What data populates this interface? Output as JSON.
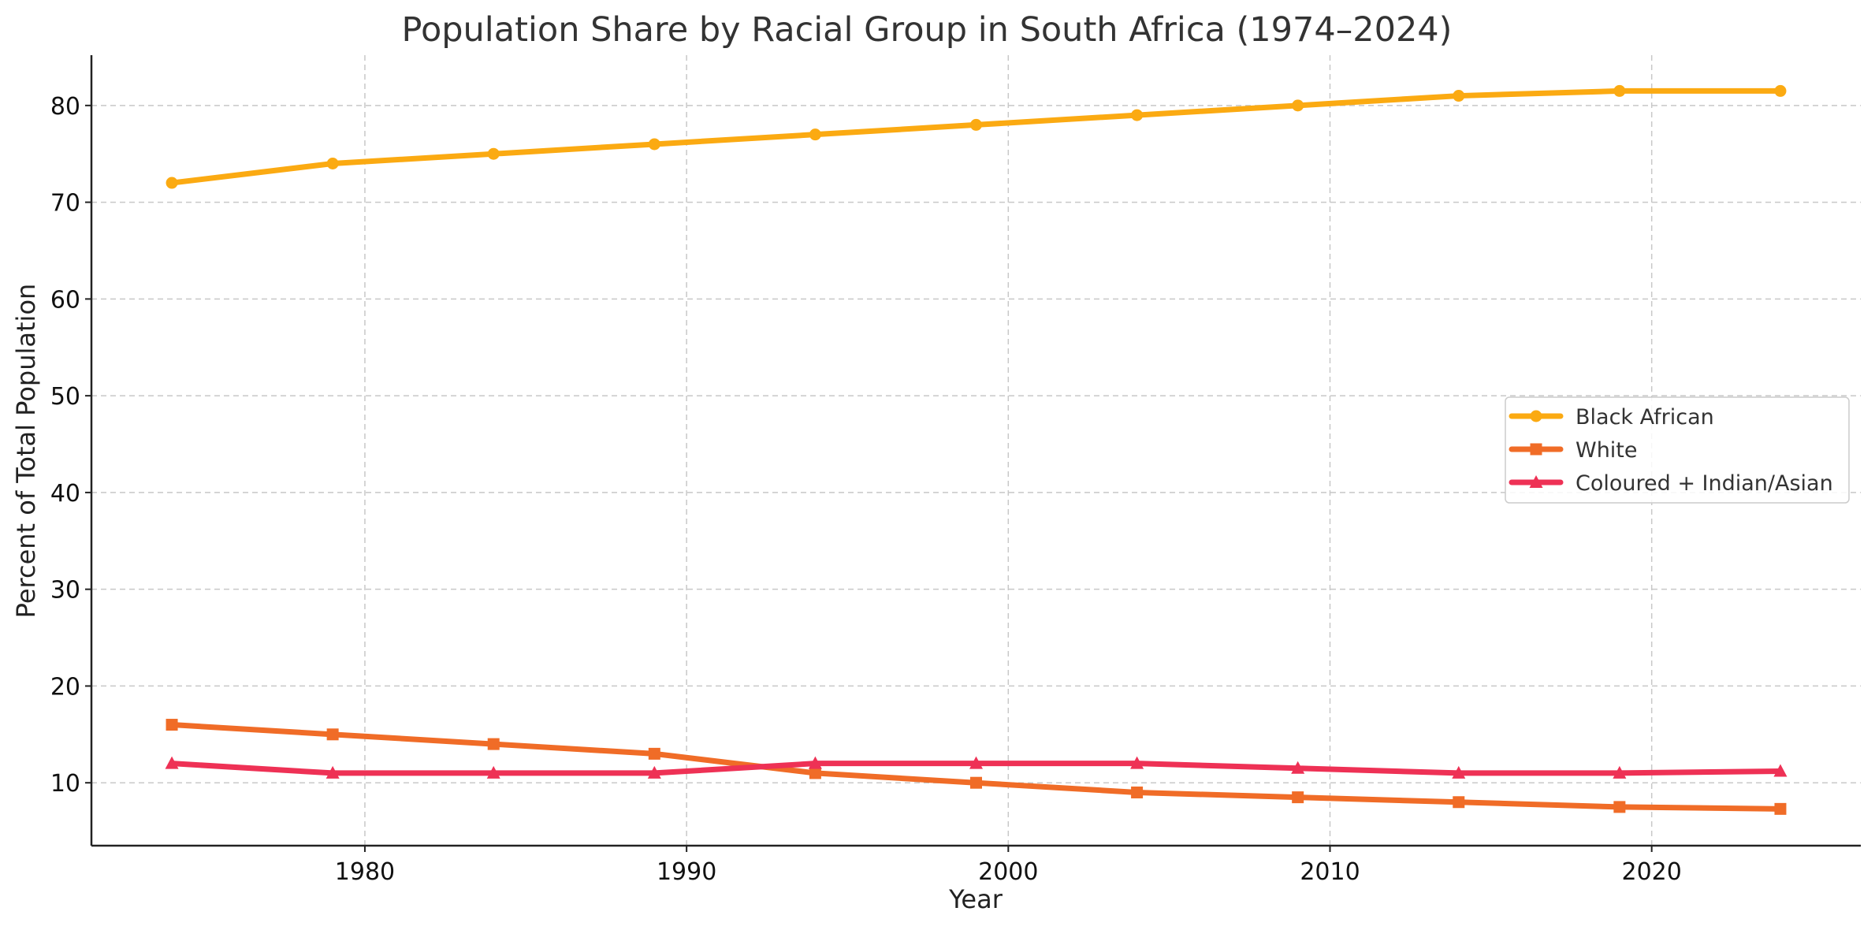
{
  "chart_data": {
    "type": "line",
    "title": "Population Share by Racial Group in South Africa (1974–2024)",
    "xlabel": "Year",
    "ylabel": "Percent of Total Population",
    "xlim": [
      1971.5,
      2026.5
    ],
    "ylim": [
      3.5,
      85.2
    ],
    "x_ticks": [
      1980,
      1990,
      2000,
      2010,
      2020
    ],
    "y_ticks": [
      10,
      20,
      30,
      40,
      50,
      60,
      70,
      80
    ],
    "grid": true,
    "legend_position": "center-right",
    "x": [
      1974,
      1979,
      1984,
      1989,
      1994,
      1999,
      2004,
      2009,
      2014,
      2019,
      2024
    ],
    "series": [
      {
        "name": "Black African",
        "color": "#FBAA12",
        "marker": "circle",
        "values": [
          72,
          74,
          75,
          76,
          77,
          78,
          79,
          80,
          81,
          81.5,
          81.5
        ]
      },
      {
        "name": "White",
        "color": "#F06C27",
        "marker": "square",
        "values": [
          16,
          15,
          14,
          13,
          11,
          10,
          9,
          8.5,
          8,
          7.5,
          7.3
        ]
      },
      {
        "name": "Coloured + Indian/Asian",
        "color": "#EE3155",
        "marker": "triangle",
        "values": [
          12,
          11,
          11,
          11,
          12,
          12,
          12,
          11.5,
          11,
          11,
          11.2
        ]
      }
    ]
  }
}
